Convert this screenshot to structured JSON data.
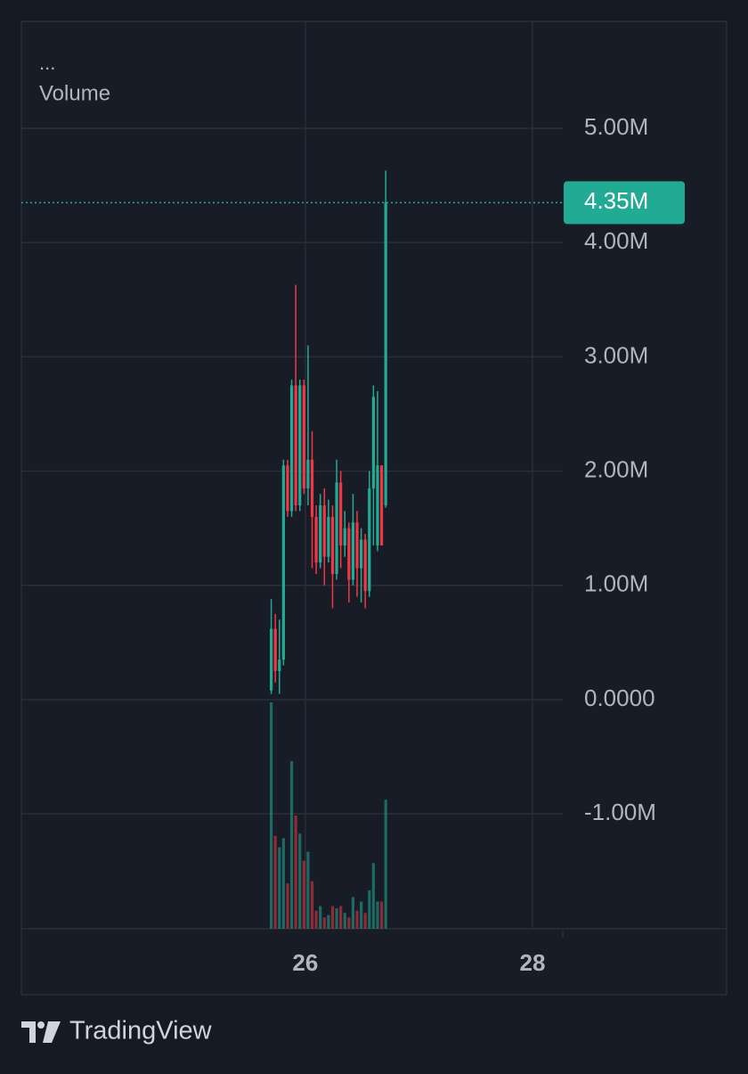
{
  "chart_data": {
    "type": "candlestick",
    "legend_dots": "...",
    "legend_title": "Volume",
    "x": [
      25.7,
      25.736,
      25.772,
      25.808,
      25.844,
      25.88,
      25.916,
      25.952,
      25.988,
      26.024,
      26.06,
      26.096,
      26.132,
      26.168,
      26.204,
      26.24,
      26.276,
      26.312,
      26.348,
      26.384,
      26.42,
      26.456,
      26.492,
      26.528,
      26.564,
      26.6,
      26.636,
      26.672,
      26.708
    ],
    "open": [
      0.08,
      0.62,
      0.25,
      0.35,
      2.05,
      1.65,
      2.75,
      1.7,
      2.75,
      1.85,
      2.1,
      1.6,
      1.2,
      1.7,
      1.25,
      1.6,
      1.1,
      1.9,
      1.35,
      1.5,
      1.05,
      1.55,
      1.15,
      1.4,
      0.95,
      1.85,
      1.35,
      2.05,
      1.7
    ],
    "high": [
      0.88,
      0.75,
      0.7,
      2.1,
      2.1,
      2.8,
      3.63,
      2.8,
      2.8,
      3.1,
      2.35,
      1.7,
      1.8,
      1.85,
      1.75,
      1.7,
      2.1,
      2.0,
      1.65,
      1.55,
      1.8,
      1.65,
      1.5,
      1.45,
      2.0,
      2.75,
      2.7,
      2.05,
      4.63
    ],
    "low": [
      0.05,
      0.15,
      0.05,
      0.3,
      1.6,
      1.6,
      1.65,
      1.65,
      1.8,
      1.7,
      1.15,
      1.1,
      1.15,
      1.0,
      1.2,
      0.8,
      1.05,
      1.15,
      1.25,
      0.85,
      1.0,
      0.9,
      0.85,
      0.8,
      0.9,
      1.35,
      1.3,
      1.35,
      1.68
    ],
    "close": [
      0.62,
      0.25,
      0.35,
      2.05,
      1.65,
      2.75,
      1.7,
      2.75,
      1.85,
      2.1,
      1.6,
      1.2,
      1.7,
      1.25,
      1.6,
      1.1,
      1.9,
      1.35,
      1.5,
      1.05,
      1.55,
      1.15,
      1.4,
      0.95,
      1.85,
      2.65,
      2.05,
      1.35,
      4.35
    ],
    "volume": [
      100,
      41,
      36,
      40,
      20,
      74,
      50,
      42,
      30,
      34,
      21,
      8,
      10,
      5,
      6,
      10,
      9,
      10,
      7,
      5,
      14,
      8,
      12,
      7,
      17,
      29,
      12,
      12,
      57
    ],
    "volume_lim": [
      0,
      100
    ],
    "up_color": "#22ab94",
    "down_color": "#f23645",
    "xlim": [
      23.5,
      28.267
    ],
    "xticks": [
      26,
      28
    ],
    "ylim": [
      -2.005,
      5.936
    ],
    "yticks": [
      {
        "value": 5,
        "label": "5.00M"
      },
      {
        "value": 4,
        "label": "4.00M"
      },
      {
        "value": 3,
        "label": "3.00M"
      },
      {
        "value": 2,
        "label": "2.00M"
      },
      {
        "value": 1,
        "label": "1.00M"
      },
      {
        "value": 0,
        "label": "0.0000"
      },
      {
        "value": -1,
        "label": "-1.00M"
      }
    ],
    "grid": true,
    "last_price": {
      "value": 4.35,
      "label": "4.35M"
    }
  },
  "footer": {
    "brand": "TradingView"
  }
}
